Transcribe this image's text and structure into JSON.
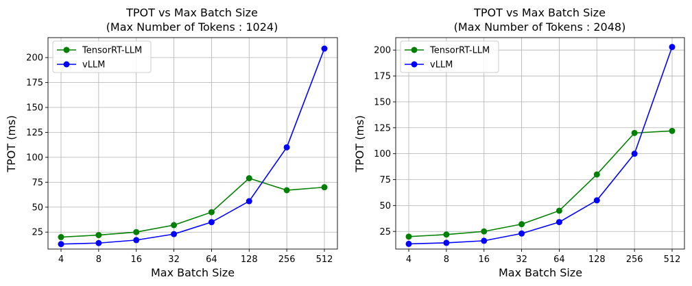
{
  "chart_data": [
    {
      "type": "line",
      "title_line1": "TPOT vs Max Batch Size",
      "title_line2": "(Max Number of Tokens : 1024)",
      "xlabel": "Max Batch Size",
      "ylabel": "TPOT (ms)",
      "categories": [
        "4",
        "8",
        "16",
        "32",
        "64",
        "128",
        "256",
        "512"
      ],
      "yticks": [
        25,
        50,
        75,
        100,
        125,
        150,
        175,
        200
      ],
      "ylim": [
        8,
        220
      ],
      "grid": true,
      "legend_position": "top-left",
      "series": [
        {
          "name": "TensorRT-LLM",
          "color": "#008000",
          "values": [
            20,
            22,
            25,
            32,
            45,
            79,
            67,
            70
          ]
        },
        {
          "name": "vLLM",
          "color": "#0000ff",
          "values": [
            13,
            14,
            17,
            23,
            35,
            56,
            110,
            209
          ]
        }
      ]
    },
    {
      "type": "line",
      "title_line1": "TPOT vs Max Batch Size",
      "title_line2": "(Max Number of Tokens : 2048)",
      "xlabel": "Max Batch Size",
      "ylabel": "TPOT (ms)",
      "categories": [
        "4",
        "8",
        "16",
        "32",
        "64",
        "128",
        "256",
        "512"
      ],
      "yticks": [
        25,
        50,
        75,
        100,
        125,
        150,
        175,
        200
      ],
      "ylim": [
        8,
        212
      ],
      "grid": true,
      "legend_position": "top-left",
      "series": [
        {
          "name": "TensorRT-LLM",
          "color": "#008000",
          "values": [
            20,
            22,
            25,
            32,
            45,
            80,
            120,
            122
          ]
        },
        {
          "name": "vLLM",
          "color": "#0000ff",
          "values": [
            13,
            14,
            16,
            23,
            34,
            55,
            100,
            203
          ]
        }
      ]
    }
  ]
}
